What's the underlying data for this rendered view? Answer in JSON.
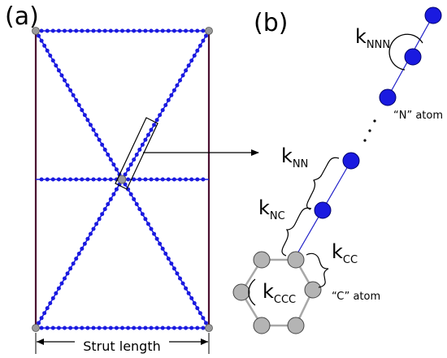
{
  "panels": {
    "a_label": "(a)",
    "b_label": "(b)"
  },
  "panel_a": {
    "strut_length_label": "Strut length",
    "frame_color": "#4a1030",
    "bead_color": "#1a1ae0",
    "node_color": "#9a9a9a"
  },
  "panel_b": {
    "springs": {
      "k_NNN": {
        "main": "k",
        "sub": "NNN"
      },
      "k_NN": {
        "main": "k",
        "sub": "NN"
      },
      "k_NC": {
        "main": "k",
        "sub": "NC"
      },
      "k_CC": {
        "main": "k",
        "sub": "CC"
      },
      "k_CCC": {
        "main": "k",
        "sub": "CCC"
      }
    },
    "n_atom_label": "“N” atom",
    "c_atom_label": "“C” atom",
    "n_atom_color": "#1a1ae0",
    "c_atom_color": "#b4b4b4",
    "chain_line_color": "#2020c8",
    "ring_bond_color": "#a8a8a8"
  }
}
